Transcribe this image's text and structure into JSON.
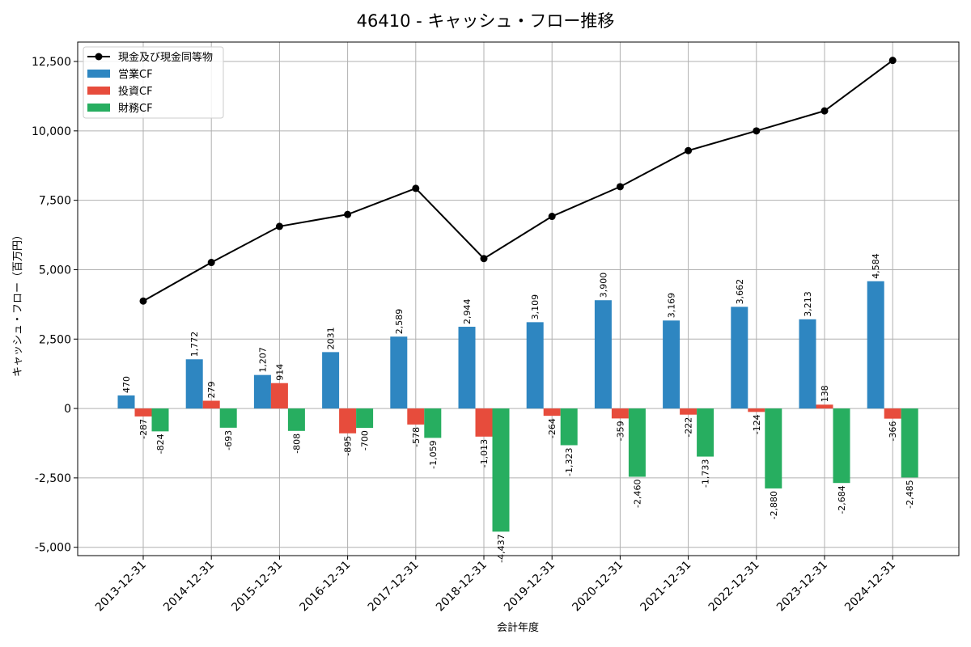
{
  "chart_data": {
    "type": "bar",
    "title": "46410 - キャッシュ・フロー推移",
    "xlabel": "会計年度",
    "ylabel": "キャッシュ・フロー（百万円）",
    "categories": [
      "2013-12-31",
      "2014-12-31",
      "2015-12-31",
      "2016-12-31",
      "2017-12-31",
      "2018-12-31",
      "2019-12-31",
      "2020-12-31",
      "2021-12-31",
      "2022-12-31",
      "2023-12-31",
      "2024-12-31"
    ],
    "ylim": [
      -5300,
      13200
    ],
    "yticks": [
      -5000,
      -2500,
      0,
      2500,
      5000,
      7500,
      10000,
      12500
    ],
    "ytick_labels": [
      "-5,000",
      "-2,500",
      "0",
      "2,500",
      "5,000",
      "7,500",
      "10,000",
      "12,500"
    ],
    "grid": true,
    "legend_position": "top-left",
    "series": [
      {
        "name": "営業CF",
        "kind": "bar",
        "color": "#2e86c1",
        "values": [
          470,
          1772,
          1207,
          2031,
          2589,
          2944,
          3109,
          3900,
          3169,
          3662,
          3213,
          4584
        ],
        "labels": [
          "470",
          "1,772",
          "1,207",
          "2031",
          "2,589",
          "2,944",
          "3,109",
          "3,900",
          "3,169",
          "3,662",
          "3,213",
          "4,584"
        ]
      },
      {
        "name": "投資CF",
        "kind": "bar",
        "color": "#e74c3c",
        "values": [
          -287,
          279,
          914,
          -895,
          -578,
          -1013,
          -264,
          -359,
          -222,
          -124,
          138,
          -366
        ],
        "labels": [
          "-287",
          "279",
          "914",
          "-895",
          "-578",
          "-1,013",
          "-264",
          "-359",
          "-222",
          "-124",
          "138",
          "-366"
        ]
      },
      {
        "name": "財務CF",
        "kind": "bar",
        "color": "#27ae60",
        "values": [
          -824,
          -693,
          -808,
          -700,
          -1059,
          -4437,
          -1323,
          -2460,
          -1733,
          -2880,
          -2684,
          -2485
        ],
        "labels": [
          "-824",
          "-693",
          "-808",
          "-700",
          "-1,059",
          "-4,437",
          "-1,323",
          "-2,460",
          "-1,733",
          "-2,880",
          "-2,684",
          "-2,485"
        ]
      },
      {
        "name": "現金及び現金同等物",
        "kind": "line",
        "color": "#000000",
        "values": [
          3870,
          5260,
          6560,
          6990,
          7930,
          5400,
          6920,
          7990,
          9290,
          10000,
          10720,
          12540
        ]
      }
    ]
  }
}
